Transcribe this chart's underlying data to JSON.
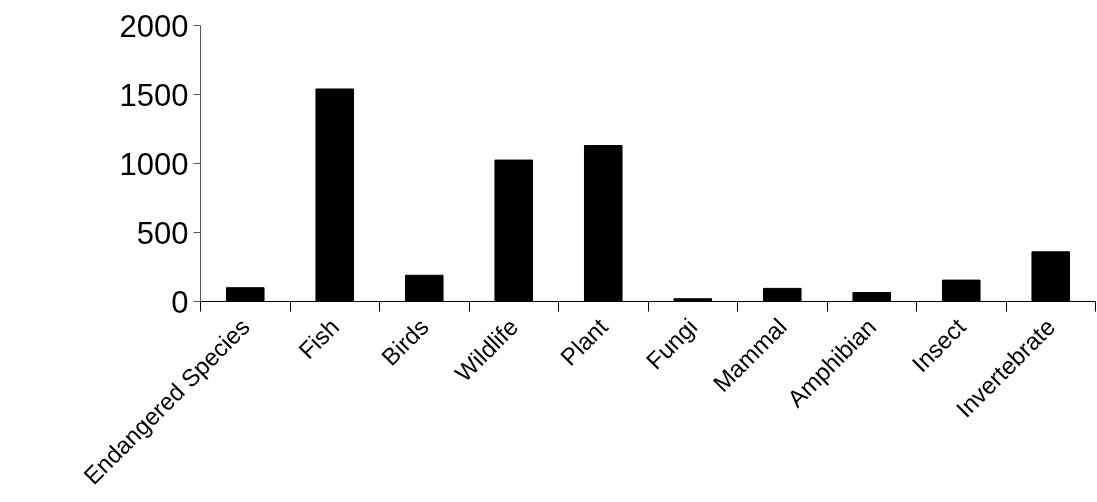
{
  "chart_data": {
    "type": "bar",
    "categories": [
      "Endangered Species",
      "Fish",
      "Birds",
      "Wildlife",
      "Plant",
      "Fungi",
      "Mammal",
      "Amphibian",
      "Insect",
      "Invertebrate"
    ],
    "values": [
      100,
      1540,
      190,
      1025,
      1130,
      20,
      95,
      65,
      155,
      360
    ],
    "color": "#000000",
    "ylim": [
      0,
      2000
    ],
    "yticks": [
      0,
      500,
      1000,
      1500,
      2000
    ],
    "grid": false
  }
}
